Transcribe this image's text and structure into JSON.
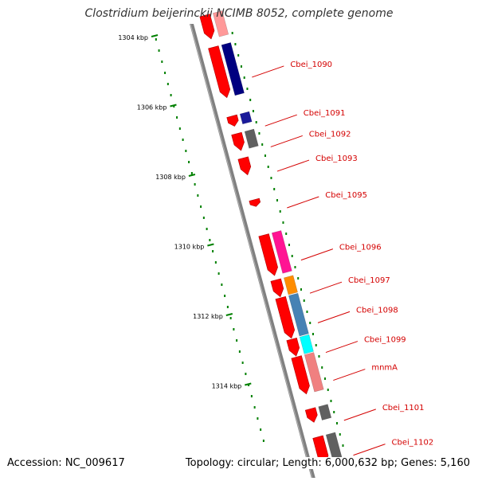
{
  "title": "Clostridium beijerinckii NCIMB 8052, complete genome",
  "footer": {
    "accession": "Accession: NC_009617",
    "topology": "Topology: circular; Length: 6,000,632 bp; Genes: 5,160"
  },
  "colors": {
    "forward_strand": "#ff0000",
    "backbone": "#808080",
    "tick": "#008000",
    "label": "#d40000"
  },
  "ticks": [
    {
      "kbp": 1304,
      "label": "1304 kbp"
    },
    {
      "kbp": 1306,
      "label": "1306 kbp"
    },
    {
      "kbp": 1308,
      "label": "1308 kbp"
    },
    {
      "kbp": 1310,
      "label": "1310 kbp"
    },
    {
      "kbp": 1312,
      "label": "1312 kbp"
    },
    {
      "kbp": 1314,
      "label": "1314 kbp"
    }
  ],
  "genes": [
    {
      "label": "",
      "start_kbp": 1303.4,
      "end_kbp": 1304.1,
      "color": "#ff0000",
      "cog_color": "#ff9999"
    },
    {
      "label": "Cbei_1090",
      "start_kbp": 1304.3,
      "end_kbp": 1305.8,
      "color": "#ff0000",
      "cog_color": "#000080"
    },
    {
      "label": "Cbei_1091",
      "start_kbp": 1306.3,
      "end_kbp": 1306.6,
      "color": "#ff0000",
      "cog_color": "#1a1a9a"
    },
    {
      "label": "Cbei_1092",
      "start_kbp": 1306.8,
      "end_kbp": 1307.3,
      "color": "#ff0000",
      "cog_color": "#606060"
    },
    {
      "label": "Cbei_1093",
      "start_kbp": 1307.5,
      "end_kbp": 1308.0,
      "color": "#ff0000",
      "cog_color": ""
    },
    {
      "label": "Cbei_1095",
      "start_kbp": 1308.7,
      "end_kbp": 1308.9,
      "color": "#ff0000",
      "cog_color": ""
    },
    {
      "label": "Cbei_1096",
      "start_kbp": 1309.7,
      "end_kbp": 1310.9,
      "color": "#ff0000",
      "cog_color": "#ff1493"
    },
    {
      "label": "Cbei_1097",
      "start_kbp": 1311.0,
      "end_kbp": 1311.5,
      "color": "#ff0000",
      "cog_color": "#ff8c00"
    },
    {
      "label": "Cbei_1098",
      "start_kbp": 1311.5,
      "end_kbp": 1312.7,
      "color": "#ff0000",
      "cog_color": "#4682b4"
    },
    {
      "label": "Cbei_1099",
      "start_kbp": 1312.7,
      "end_kbp": 1313.2,
      "color": "#ff0000",
      "cog_color": "#00ffff"
    },
    {
      "label": "mnmA",
      "start_kbp": 1313.2,
      "end_kbp": 1314.3,
      "color": "#ff0000",
      "cog_color": "#f08080"
    },
    {
      "label": "Cbei_1101",
      "start_kbp": 1314.7,
      "end_kbp": 1315.1,
      "color": "#ff0000",
      "cog_color": "#606060"
    },
    {
      "label": "Cbei_1102",
      "start_kbp": 1315.5,
      "end_kbp": 1316.3,
      "color": "#ff0000",
      "cog_color": "#606060"
    }
  ]
}
